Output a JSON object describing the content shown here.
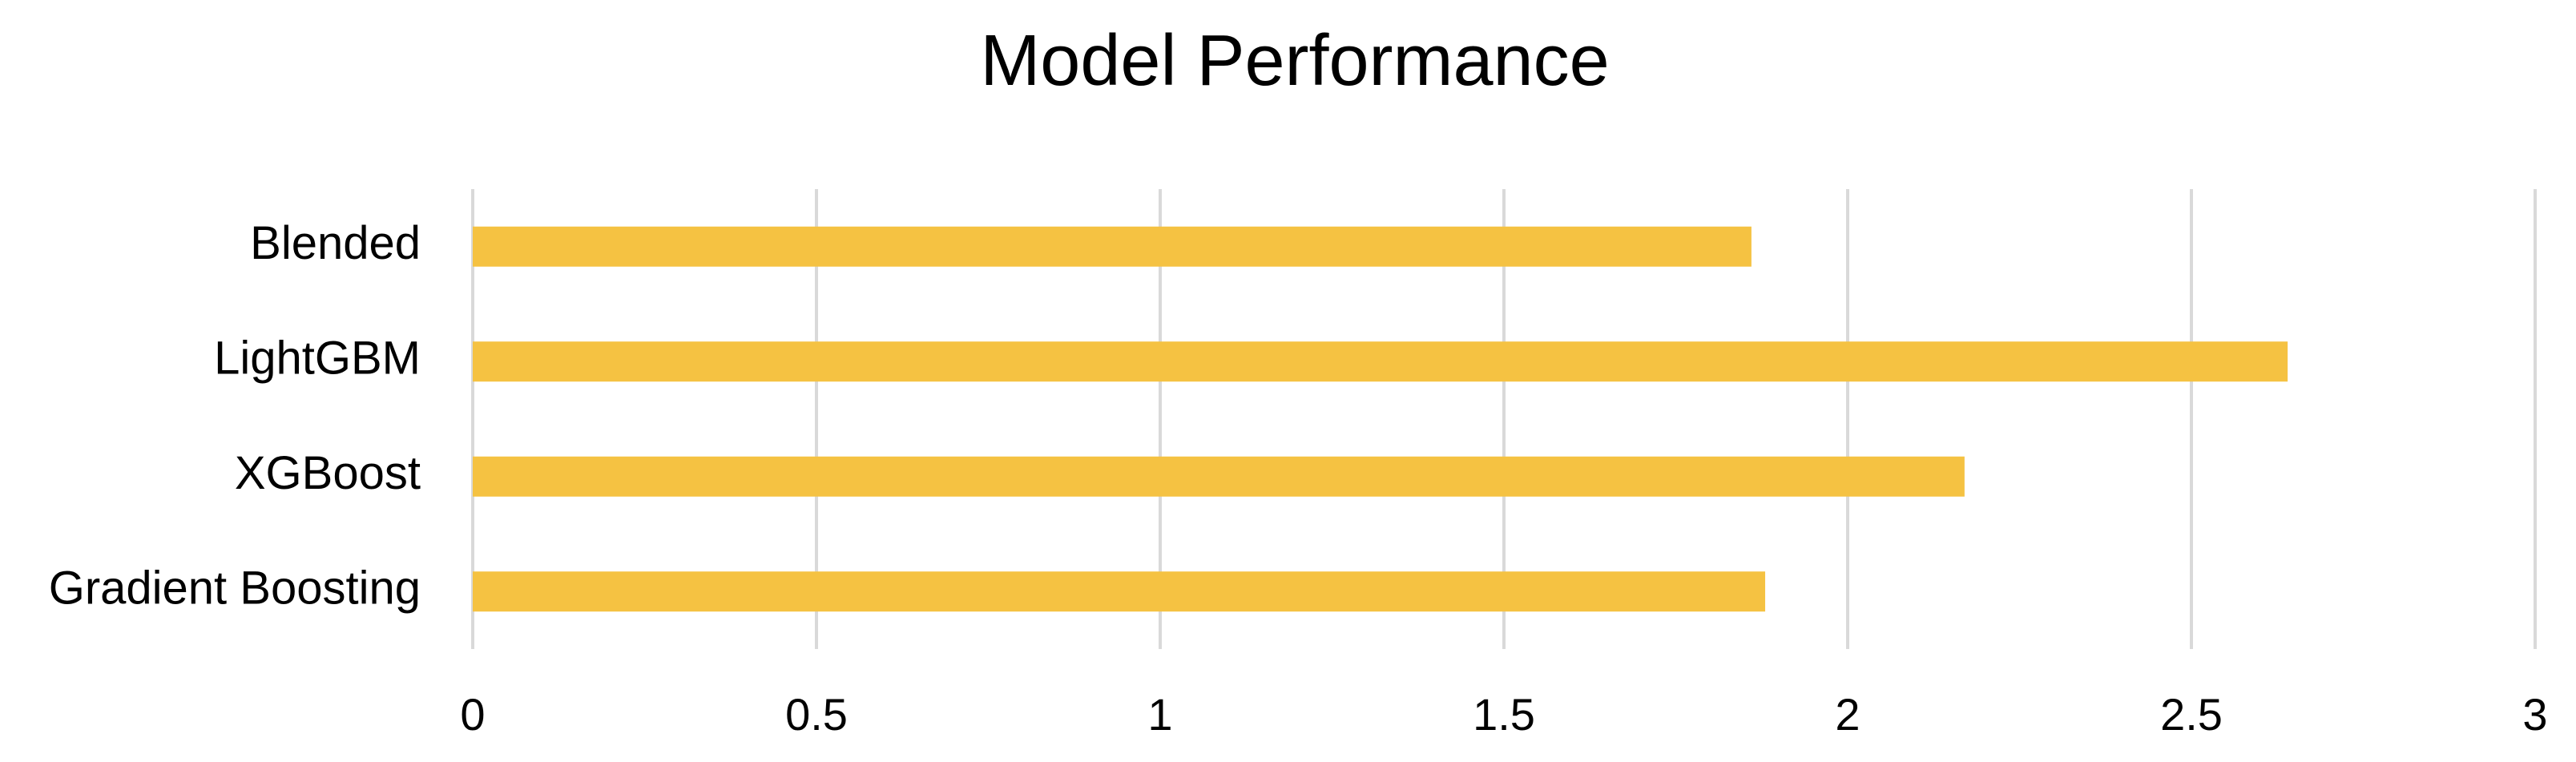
{
  "chart_data": {
    "type": "barh",
    "title": "Model Performance",
    "categories": [
      "Blended",
      "LightGBM",
      "XGBoost",
      "Gradient Boosting"
    ],
    "values": [
      1.86,
      2.64,
      2.17,
      1.88
    ],
    "color": "#f5c242",
    "xlim": [
      0,
      3
    ],
    "xticks": [
      0,
      0.5,
      1,
      1.5,
      2,
      2.5,
      3
    ],
    "grid": true
  }
}
